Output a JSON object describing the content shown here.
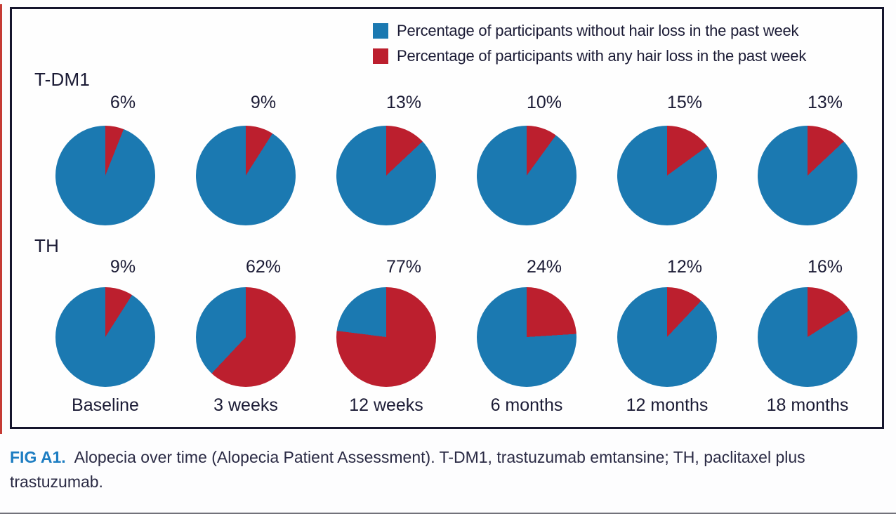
{
  "chart_data": {
    "type": "pie",
    "title": "Alopecia over time (Alopecia Patient Assessment)",
    "categories": [
      "Baseline",
      "3 weeks",
      "12 weeks",
      "6 months",
      "12 months",
      "18 months"
    ],
    "series": [
      {
        "name": "T-DM1",
        "values": [
          6,
          9,
          13,
          10,
          15,
          13
        ],
        "labels": [
          "6%",
          "9%",
          "13%",
          "10%",
          "15%",
          "13%"
        ]
      },
      {
        "name": "TH",
        "values": [
          9,
          62,
          77,
          24,
          12,
          16
        ],
        "labels": [
          "9%",
          "62%",
          "77%",
          "24%",
          "12%",
          "16%"
        ]
      }
    ],
    "colors": {
      "without_hair_loss": "#1b79b1",
      "with_hair_loss": "#bc1f2e"
    },
    "legend": [
      {
        "label": "Percentage of participants without hair loss in the past week",
        "color": "#1b79b1"
      },
      {
        "label": "Percentage of participants with any hair loss in the past week",
        "color": "#bc1f2e"
      }
    ],
    "legend_position": "top-right inside frame",
    "slice_layout": "red (with hair loss) wedge starts at 12 o'clock and sweeps clockwise; blue fills the remainder"
  },
  "caption": {
    "fig_label": "FIG A1.",
    "text": "Alopecia over time (Alopecia Patient Assessment). T-DM1, trastuzumab emtansine; TH, paclitaxel plus trastuzumab."
  }
}
